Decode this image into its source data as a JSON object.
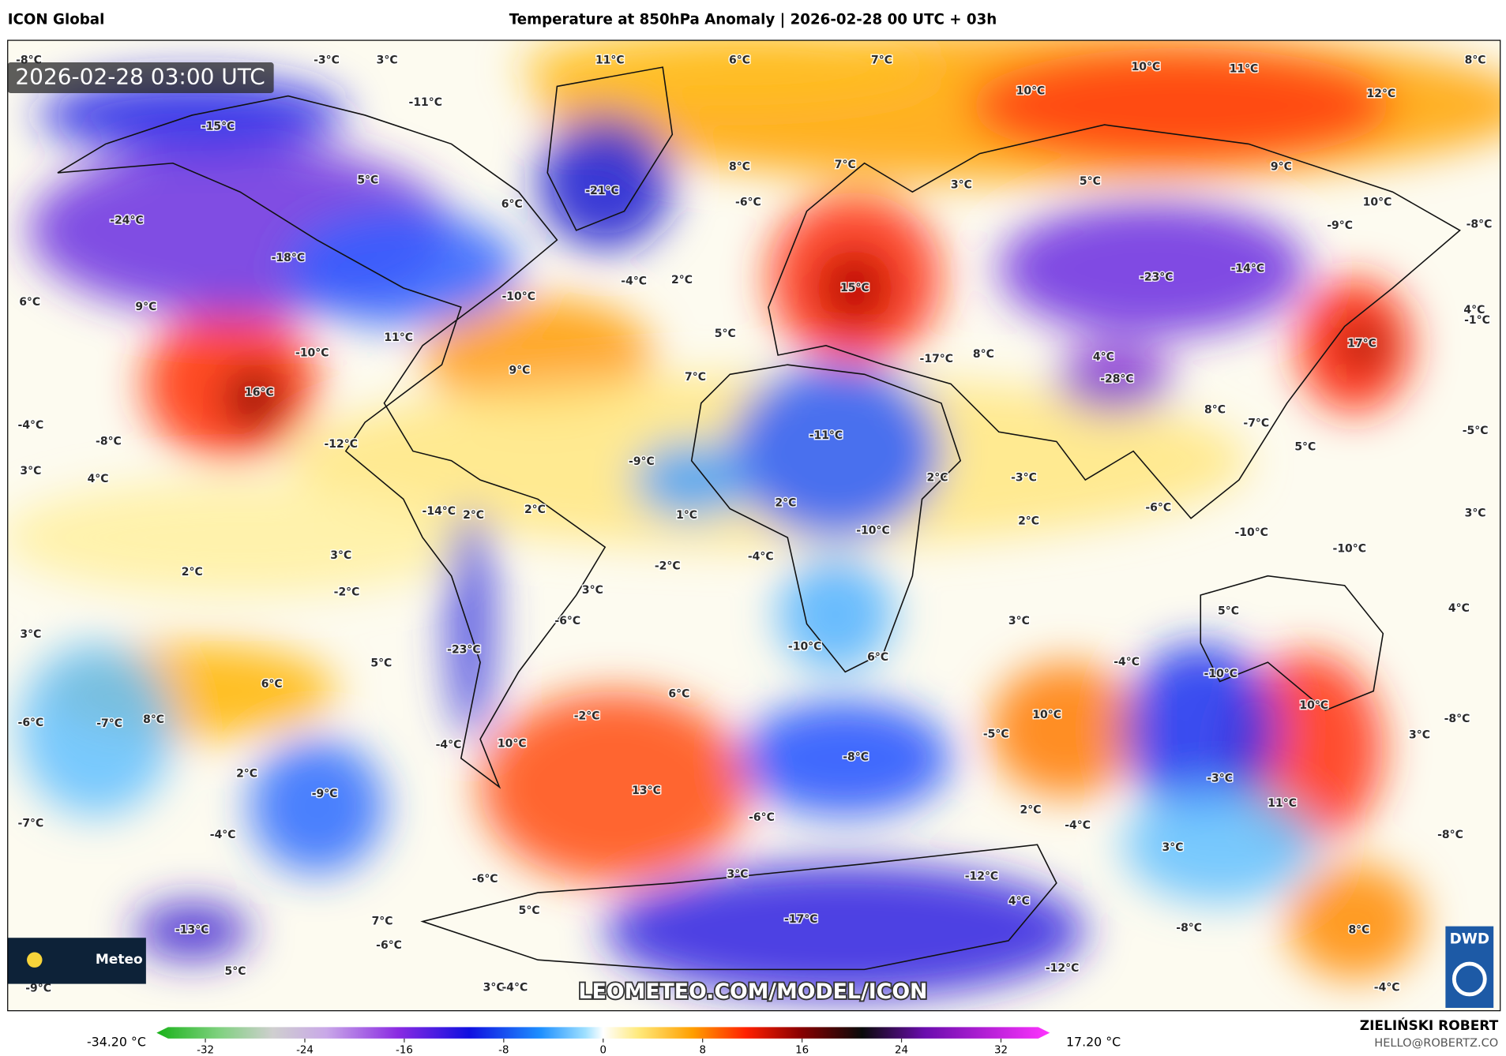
{
  "header": {
    "model": "ICON Global",
    "title": "Temperature at 850hPa Anomaly | 2026-02-28 00 UTC + 03h"
  },
  "timestamp": "2026-02-28 03:00 UTC",
  "map_labels": [
    "-8°C",
    "-3°C",
    "3°C",
    "11°C",
    "6°C",
    "7°C",
    "10°C",
    "11°C",
    "8°C",
    "10°C",
    "12°C",
    "-11°C",
    "-15°C",
    "8°C",
    "7°C",
    "-21°C",
    "5°C",
    "6°C",
    "-6°C",
    "3°C",
    "5°C",
    "9°C",
    "10°C",
    "-9°C",
    "-8°C",
    "-24°C",
    "-18°C",
    "-4°C",
    "2°C",
    "15°C",
    "-23°C",
    "-14°C",
    "6°C",
    "9°C",
    "-10°C",
    "11°C",
    "5°C",
    "-17°C",
    "8°C",
    "4°C",
    "17°C",
    "4°C",
    "-1°C",
    "-10°C",
    "9°C",
    "7°C",
    "-28°C",
    "16°C",
    "8°C",
    "-7°C",
    "-4°C",
    "-8°C",
    "-12°C",
    "-11°C",
    "5°C",
    "-5°C",
    "3°C",
    "4°C",
    "-9°C",
    "2°C",
    "-3°C",
    "-14°C",
    "2°C",
    "2°C",
    "1°C",
    "2°C",
    "-6°C",
    "2°C",
    "-10°C",
    "3°C",
    "3°C",
    "-10°C",
    "-2°C",
    "-4°C",
    "2°C",
    "-2°C",
    "3°C",
    "-10°C",
    "5°C",
    "4°C",
    "-6°C",
    "3°C",
    "3°C",
    "-23°C",
    "-10°C",
    "6°C",
    "5°C",
    "-4°C",
    "-10°C",
    "6°C",
    "6°C",
    "10°C",
    "-6°C",
    "-7°C",
    "8°C",
    "-2°C",
    "10°C",
    "-8°C",
    "-5°C",
    "3°C",
    "-4°C",
    "10°C",
    "-8°C",
    "-3°C",
    "2°C",
    "-9°C",
    "13°C",
    "11°C",
    "2°C",
    "-6°C",
    "-7°C",
    "-4°C",
    "-4°C",
    "-8°C",
    "3°C",
    "3°C",
    "-6°C",
    "-12°C",
    "4°C",
    "5°C",
    "-17°C",
    "-13°C",
    "7°C",
    "-8°C",
    "8°C",
    "-6°C",
    "5°C",
    "-12°C",
    "-9°C",
    "3°C",
    "-4°C",
    "-4°C"
  ],
  "colorbar": {
    "min_label": "-34.20 °C",
    "max_label": "17.20 °C",
    "range": [
      -35,
      35
    ],
    "ticks": [
      -32,
      -24,
      -16,
      -8,
      0,
      8,
      16,
      24,
      32
    ]
  },
  "watermark": "LEOMETEO.COM/MODEL/ICON",
  "badge": "Meteo",
  "logo": "DWD",
  "credit": {
    "name": "ZIELIŃSKI ROBERT",
    "email": "HELLO@ROBERTZ.CO"
  }
}
